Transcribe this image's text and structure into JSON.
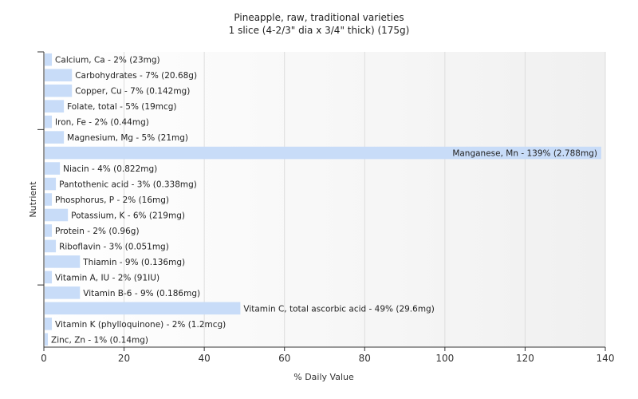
{
  "chart_data": {
    "type": "bar",
    "orientation": "horizontal",
    "title": "Pineapple, raw, traditional varieties",
    "subtitle": "1 slice (4-2/3\" dia x 3/4\" thick) (175g)",
    "xlabel": "% Daily Value",
    "ylabel": "Nutrient",
    "xlim": [
      0,
      140
    ],
    "xticks": [
      0,
      20,
      40,
      60,
      80,
      100,
      120,
      140
    ],
    "grid": "vertical",
    "bar_color": "#c8dcf8",
    "categories": [
      "Calcium, Ca",
      "Carbohydrates",
      "Copper, Cu",
      "Folate, total",
      "Iron, Fe",
      "Magnesium, Mg",
      "Manganese, Mn",
      "Niacin",
      "Pantothenic acid",
      "Phosphorus, P",
      "Potassium, K",
      "Protein",
      "Riboflavin",
      "Thiamin",
      "Vitamin A, IU",
      "Vitamin B-6",
      "Vitamin C, total ascorbic acid",
      "Vitamin K (phylloquinone)",
      "Zinc, Zn"
    ],
    "values": [
      2,
      7,
      7,
      5,
      2,
      5,
      139,
      4,
      3,
      2,
      6,
      2,
      3,
      9,
      2,
      9,
      49,
      2,
      1
    ],
    "data_labels": [
      "Calcium, Ca - 2% (23mg)",
      "Carbohydrates - 7% (20.68g)",
      "Copper, Cu - 7% (0.142mg)",
      "Folate, total - 5% (19mcg)",
      "Iron, Fe - 2% (0.44mg)",
      "Magnesium, Mg - 5% (21mg)",
      "Manganese, Mn - 139% (2.788mg)",
      "Niacin - 4% (0.822mg)",
      "Pantothenic acid - 3% (0.338mg)",
      "Phosphorus, P - 2% (16mg)",
      "Potassium, K - 6% (219mg)",
      "Protein - 2% (0.96g)",
      "Riboflavin - 3% (0.051mg)",
      "Thiamin - 9% (0.136mg)",
      "Vitamin A, IU - 2% (91IU)",
      "Vitamin B-6 - 9% (0.186mg)",
      "Vitamin C, total ascorbic acid - 49% (29.6mg)",
      "Vitamin K (phylloquinone) - 2% (1.2mcg)",
      "Zinc, Zn - 1% (0.14mg)"
    ]
  }
}
